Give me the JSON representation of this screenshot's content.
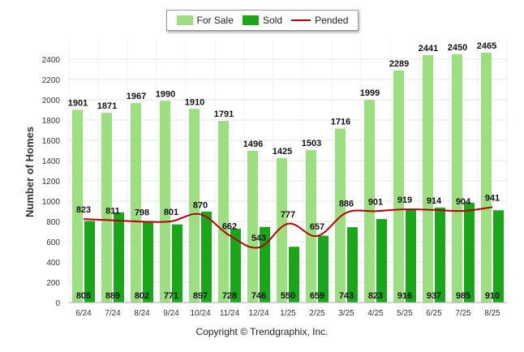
{
  "chart_data": {
    "type": "bar",
    "ylabel": "Number of Homes",
    "ylim": [
      0,
      2600
    ],
    "yticks": [
      "0",
      "200",
      "400",
      "600",
      "800",
      "1000",
      "1200",
      "1400",
      "1600",
      "1800",
      "2000",
      "2200",
      "2400"
    ],
    "categories": [
      "6/24",
      "7/24",
      "8/24",
      "9/24",
      "10/24",
      "11/24",
      "12/24",
      "1/25",
      "2/25",
      "3/25",
      "4/25",
      "5/25",
      "6/25",
      "7/25",
      "8/25"
    ],
    "series": [
      {
        "name": "For Sale",
        "type": "bar",
        "color": "#9ede82",
        "values": [
          1901,
          1871,
          1967,
          1990,
          1910,
          1791,
          1496,
          1425,
          1503,
          1716,
          1999,
          2289,
          2441,
          2450,
          2465
        ]
      },
      {
        "name": "Sold",
        "type": "bar",
        "color": "#1aa51a",
        "values": [
          805,
          889,
          802,
          771,
          897,
          728,
          746,
          550,
          659,
          743,
          823,
          916,
          937,
          985,
          910
        ]
      },
      {
        "name": "Pended",
        "type": "line",
        "color": "#b30000",
        "values": [
          823,
          811,
          798,
          801,
          870,
          662,
          543,
          777,
          657,
          886,
          901,
          919,
          914,
          904,
          941
        ]
      }
    ],
    "grid": true,
    "legend_position": "top-center"
  },
  "copyright": "Copyright © Trendgraphix, Inc."
}
